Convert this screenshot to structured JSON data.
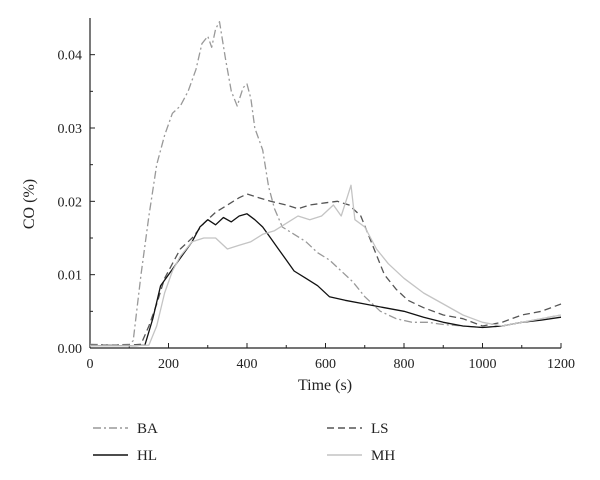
{
  "chart_data": {
    "type": "line",
    "xlabel": "Time (s)",
    "ylabel": "CO (%)",
    "xlim": [
      0,
      1200
    ],
    "ylim": [
      0,
      0.045
    ],
    "x_ticks": [
      0,
      200,
      400,
      600,
      800,
      1000,
      1200
    ],
    "x_tick_labels": [
      "0",
      "200",
      "400",
      "600",
      "800",
      "1000",
      "1200"
    ],
    "y_ticks": [
      0,
      0.01,
      0.02,
      0.03,
      0.04
    ],
    "y_tick_labels": [
      "0.00",
      "0.01",
      "0.02",
      "0.03",
      "0.04"
    ],
    "grid": false,
    "legend_position": "bottom",
    "series": [
      {
        "name": "BA",
        "color": "#999999",
        "style": "dash-dot",
        "points": [
          [
            0,
            0.0005
          ],
          [
            60,
            0.0004
          ],
          [
            100,
            0.0005
          ],
          [
            110,
            0.001
          ],
          [
            130,
            0.01
          ],
          [
            150,
            0.018
          ],
          [
            170,
            0.025
          ],
          [
            190,
            0.029
          ],
          [
            210,
            0.032
          ],
          [
            230,
            0.033
          ],
          [
            250,
            0.035
          ],
          [
            270,
            0.038
          ],
          [
            285,
            0.0415
          ],
          [
            300,
            0.0425
          ],
          [
            310,
            0.041
          ],
          [
            320,
            0.0435
          ],
          [
            330,
            0.0445
          ],
          [
            345,
            0.0395
          ],
          [
            360,
            0.035
          ],
          [
            375,
            0.033
          ],
          [
            390,
            0.0355
          ],
          [
            400,
            0.036
          ],
          [
            410,
            0.034
          ],
          [
            420,
            0.03
          ],
          [
            440,
            0.027
          ],
          [
            455,
            0.022
          ],
          [
            470,
            0.019
          ],
          [
            490,
            0.0165
          ],
          [
            520,
            0.0155
          ],
          [
            550,
            0.0145
          ],
          [
            580,
            0.013
          ],
          [
            610,
            0.012
          ],
          [
            640,
            0.0105
          ],
          [
            670,
            0.009
          ],
          [
            700,
            0.007
          ],
          [
            740,
            0.005
          ],
          [
            780,
            0.004
          ],
          [
            820,
            0.0035
          ],
          [
            860,
            0.0035
          ],
          [
            900,
            0.0032
          ],
          [
            950,
            0.003
          ],
          [
            1000,
            0.0028
          ],
          [
            1050,
            0.003
          ],
          [
            1100,
            0.0035
          ],
          [
            1150,
            0.004
          ],
          [
            1200,
            0.0045
          ]
        ]
      },
      {
        "name": "LS",
        "color": "#555555",
        "style": "dashed",
        "points": [
          [
            0,
            0.0004
          ],
          [
            100,
            0.0004
          ],
          [
            130,
            0.0005
          ],
          [
            150,
            0.003
          ],
          [
            170,
            0.006
          ],
          [
            190,
            0.0095
          ],
          [
            210,
            0.0115
          ],
          [
            230,
            0.0135
          ],
          [
            260,
            0.015
          ],
          [
            290,
            0.017
          ],
          [
            320,
            0.0185
          ],
          [
            350,
            0.0195
          ],
          [
            380,
            0.0205
          ],
          [
            400,
            0.021
          ],
          [
            430,
            0.0205
          ],
          [
            460,
            0.02
          ],
          [
            500,
            0.0195
          ],
          [
            530,
            0.019
          ],
          [
            560,
            0.0195
          ],
          [
            600,
            0.0198
          ],
          [
            630,
            0.02
          ],
          [
            660,
            0.0195
          ],
          [
            690,
            0.018
          ],
          [
            720,
            0.014
          ],
          [
            750,
            0.01
          ],
          [
            780,
            0.008
          ],
          [
            810,
            0.0065
          ],
          [
            850,
            0.0055
          ],
          [
            900,
            0.0045
          ],
          [
            950,
            0.004
          ],
          [
            1000,
            0.003
          ],
          [
            1050,
            0.0035
          ],
          [
            1100,
            0.0045
          ],
          [
            1150,
            0.005
          ],
          [
            1200,
            0.006
          ]
        ]
      },
      {
        "name": "HL",
        "color": "#111111",
        "style": "solid",
        "points": [
          [
            0,
            0.0003
          ],
          [
            100,
            0.0003
          ],
          [
            140,
            0.0004
          ],
          [
            160,
            0.004
          ],
          [
            180,
            0.0085
          ],
          [
            200,
            0.01
          ],
          [
            220,
            0.0115
          ],
          [
            240,
            0.013
          ],
          [
            260,
            0.0145
          ],
          [
            280,
            0.0165
          ],
          [
            300,
            0.0175
          ],
          [
            320,
            0.0168
          ],
          [
            340,
            0.0178
          ],
          [
            360,
            0.0172
          ],
          [
            380,
            0.018
          ],
          [
            400,
            0.0183
          ],
          [
            420,
            0.0175
          ],
          [
            440,
            0.0165
          ],
          [
            460,
            0.015
          ],
          [
            480,
            0.0135
          ],
          [
            500,
            0.012
          ],
          [
            520,
            0.0105
          ],
          [
            550,
            0.0095
          ],
          [
            580,
            0.0085
          ],
          [
            610,
            0.007
          ],
          [
            650,
            0.0065
          ],
          [
            700,
            0.006
          ],
          [
            750,
            0.0055
          ],
          [
            800,
            0.005
          ],
          [
            850,
            0.0042
          ],
          [
            900,
            0.0035
          ],
          [
            950,
            0.003
          ],
          [
            1000,
            0.0028
          ],
          [
            1050,
            0.003
          ],
          [
            1100,
            0.0035
          ],
          [
            1150,
            0.0038
          ],
          [
            1200,
            0.0042
          ]
        ]
      },
      {
        "name": "MH",
        "color": "#c4c4c4",
        "style": "solid",
        "points": [
          [
            0,
            0.0003
          ],
          [
            100,
            0.0003
          ],
          [
            150,
            0.0004
          ],
          [
            170,
            0.003
          ],
          [
            190,
            0.0075
          ],
          [
            210,
            0.0105
          ],
          [
            230,
            0.0125
          ],
          [
            260,
            0.0145
          ],
          [
            290,
            0.015
          ],
          [
            320,
            0.015
          ],
          [
            350,
            0.0135
          ],
          [
            380,
            0.014
          ],
          [
            410,
            0.0145
          ],
          [
            440,
            0.0155
          ],
          [
            470,
            0.016
          ],
          [
            500,
            0.017
          ],
          [
            530,
            0.018
          ],
          [
            560,
            0.0175
          ],
          [
            590,
            0.018
          ],
          [
            620,
            0.0195
          ],
          [
            640,
            0.018
          ],
          [
            655,
            0.0205
          ],
          [
            665,
            0.0222
          ],
          [
            675,
            0.0175
          ],
          [
            700,
            0.0165
          ],
          [
            730,
            0.0135
          ],
          [
            760,
            0.0115
          ],
          [
            800,
            0.0095
          ],
          [
            850,
            0.0075
          ],
          [
            900,
            0.006
          ],
          [
            950,
            0.0045
          ],
          [
            1000,
            0.0035
          ],
          [
            1050,
            0.003
          ],
          [
            1100,
            0.0035
          ],
          [
            1150,
            0.004
          ],
          [
            1200,
            0.0045
          ]
        ]
      }
    ]
  }
}
